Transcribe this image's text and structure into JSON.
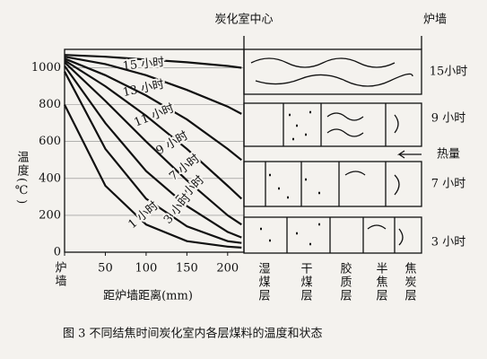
{
  "chart_data": {
    "type": "line",
    "y_label": "温度(℃)",
    "x_label": "距炉墙距离(mm)",
    "x": [
      0,
      50,
      100,
      150,
      200,
      217
    ],
    "xlim": [
      0,
      220
    ],
    "ylim": [
      0,
      1100
    ],
    "xticks": [
      {
        "value": 0,
        "label": "炉墙"
      },
      50,
      100,
      150,
      200
    ],
    "yticks": [
      0,
      200,
      400,
      600,
      800,
      1000
    ],
    "grid": true,
    "series": [
      {
        "name": "15 小时",
        "color": "#111111",
        "values": [
          1070,
          1060,
          1045,
          1030,
          1010,
          1000
        ]
      },
      {
        "name": "13 小时",
        "color": "#111111",
        "values": [
          1060,
          1020,
          960,
          880,
          790,
          750
        ]
      },
      {
        "name": "11 小时",
        "color": "#111111",
        "values": [
          1050,
          960,
          850,
          720,
          560,
          500
        ]
      },
      {
        "name": "9 小时",
        "color": "#111111",
        "values": [
          1040,
          900,
          740,
          560,
          360,
          290
        ]
      },
      {
        "name": "7 小时",
        "color": "#111111",
        "values": [
          1030,
          820,
          600,
          390,
          200,
          150
        ]
      },
      {
        "name": "5 小时",
        "color": "#111111",
        "values": [
          1010,
          700,
          440,
          250,
          110,
          80
        ]
      },
      {
        "name": "3 小时",
        "color": "#111111",
        "values": [
          980,
          560,
          290,
          140,
          60,
          50
        ]
      },
      {
        "name": "1 小时",
        "color": "#111111",
        "values": [
          800,
          360,
          150,
          60,
          30,
          25
        ]
      }
    ]
  },
  "diagram": {
    "center_label": "炭化室中心",
    "wall_label": "炉墙",
    "rows": [
      "15小时",
      "9 小时",
      "7 小时",
      "3 小时"
    ],
    "heat_label": "热量",
    "columns": [
      "湿煤层",
      "干煤层",
      "胶质层",
      "半焦层",
      "焦炭层"
    ]
  },
  "caption": "图 3   不同结焦时间炭化室内各层煤料的温度和状态"
}
